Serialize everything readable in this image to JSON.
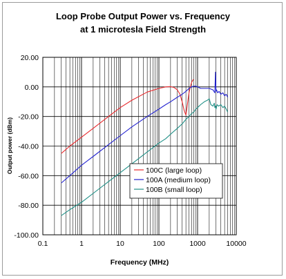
{
  "chart_data": {
    "type": "line",
    "title_line1": "Loop Probe Output Power vs. Frequency",
    "title_line2": "at 1 microtesla Field Strength",
    "xlabel": "Frequency (MHz)",
    "ylabel": "Output power (dBm)",
    "x_scale": "log",
    "xlim": [
      0.1,
      10000
    ],
    "ylim": [
      -100,
      20
    ],
    "x_ticks": [
      {
        "value": 0.1,
        "label": "0.1"
      },
      {
        "value": 1,
        "label": "1"
      },
      {
        "value": 10,
        "label": "10"
      },
      {
        "value": 100,
        "label": "100"
      },
      {
        "value": 1000,
        "label": "1000"
      },
      {
        "value": 10000,
        "label": "10000"
      }
    ],
    "y_ticks": [
      {
        "value": 20,
        "label": "20.00"
      },
      {
        "value": 0,
        "label": "0.00"
      },
      {
        "value": -20,
        "label": "-20.00"
      },
      {
        "value": -40,
        "label": "-40.00"
      },
      {
        "value": -60,
        "label": "-60.00"
      },
      {
        "value": -80,
        "label": "-80.00"
      },
      {
        "value": -100,
        "label": "-100.00"
      }
    ],
    "grid": true,
    "legend_position": "lower-right",
    "series": [
      {
        "name": "100C (large loop)",
        "color": "#e8282c",
        "x": [
          0.3,
          0.5,
          1,
          2,
          5,
          10,
          20,
          50,
          100,
          150,
          200,
          250,
          300,
          350,
          400,
          450,
          500,
          550,
          600,
          650,
          700,
          750,
          800
        ],
        "y": [
          -45,
          -40,
          -34,
          -28,
          -20,
          -14,
          -9,
          -3.5,
          -1,
          0,
          0.2,
          -0.5,
          -2,
          -5,
          -10,
          -16,
          -19,
          -11,
          -4,
          0,
          3,
          4.5,
          5
        ]
      },
      {
        "name": "100A (medium loop)",
        "color": "#2222d0",
        "x": [
          0.3,
          0.5,
          1,
          2,
          5,
          10,
          20,
          50,
          100,
          150,
          200,
          300,
          400,
          500,
          600,
          700,
          800,
          900,
          1000,
          1200,
          1500,
          2000,
          2500,
          2800,
          2900,
          3000,
          3100,
          3300,
          3600,
          4000,
          4500,
          5000,
          5500,
          6000
        ],
        "y": [
          -65,
          -60,
          -53,
          -47,
          -39,
          -33,
          -27,
          -20,
          -15,
          -12,
          -10,
          -7,
          -5,
          -3,
          -1,
          0,
          0.5,
          0.5,
          0,
          -1,
          -1,
          -1,
          -2,
          -4,
          10,
          -3,
          -2,
          -4,
          -3,
          -5,
          -4,
          -6,
          -5,
          -7
        ]
      },
      {
        "name": "100B (small loop)",
        "color": "#1e8f86",
        "x": [
          0.3,
          0.5,
          1,
          2,
          5,
          10,
          20,
          50,
          100,
          150,
          200,
          300,
          400,
          500,
          600,
          700,
          800,
          900,
          1000,
          1200,
          1500,
          1800,
          2000,
          2200,
          2500,
          2700,
          2800,
          2900,
          3000,
          3200,
          3500,
          4000,
          4500,
          5000,
          5500,
          6000
        ],
        "y": [
          -87,
          -83,
          -78,
          -72,
          -64,
          -58,
          -52,
          -44,
          -38,
          -35,
          -32,
          -28,
          -25,
          -22,
          -20,
          -18,
          -17,
          -15,
          -14,
          -12,
          -10,
          -9,
          -8,
          -12,
          -13,
          -11,
          -14,
          -13,
          -15,
          -12,
          -13,
          -12,
          -14,
          -13,
          -15,
          -17
        ]
      }
    ]
  }
}
